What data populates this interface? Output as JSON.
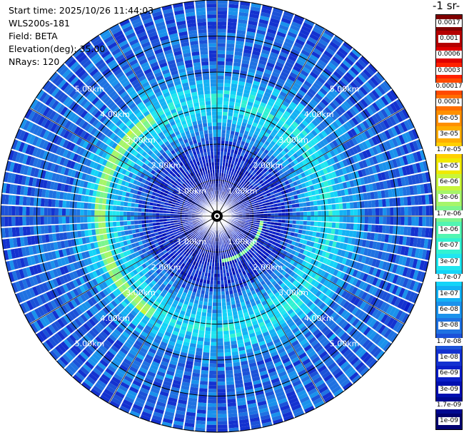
{
  "info": {
    "start_time": "Start time: 2025/10/26 11:44:03",
    "instrument": "WLS200s-181",
    "field": "Field: BETA",
    "elevation": "Elevation(deg): 35.00",
    "nrays": "NRays: 120"
  },
  "colorbar": {
    "title": "-1 sr-",
    "bands": [
      {
        "label": "0.0017",
        "color": "#7f0000"
      },
      {
        "label": "0.001",
        "color": "#b40000"
      },
      {
        "label": "0.0006",
        "color": "#e00000"
      },
      {
        "label": "0.0003",
        "color": "#ff2000"
      },
      {
        "label": "0.00017",
        "color": "#ff4a00"
      },
      {
        "label": "0.0001",
        "color": "#ff6e00"
      },
      {
        "label": "6e-05",
        "color": "#ff9000"
      },
      {
        "label": "3e-05",
        "color": "#ffae00"
      },
      {
        "label": "1.7e-05",
        "color": "#ffd000"
      },
      {
        "label": "1e-05",
        "color": "#f0ea00"
      },
      {
        "label": "6e-06",
        "color": "#c8f53a"
      },
      {
        "label": "3e-06",
        "color": "#a6f56a"
      },
      {
        "label": "1.7e-06",
        "color": "#7cf58e"
      },
      {
        "label": "1e-06",
        "color": "#52f5b2"
      },
      {
        "label": "6e-07",
        "color": "#32f2d2"
      },
      {
        "label": "3e-07",
        "color": "#20e6f0"
      },
      {
        "label": "1.7e-07",
        "color": "#14d4f8"
      },
      {
        "label": "1e-07",
        "color": "#14b2f4"
      },
      {
        "label": "6e-08",
        "color": "#1a92ec"
      },
      {
        "label": "3e-08",
        "color": "#1f72e2"
      },
      {
        "label": "1.7e-08",
        "color": "#1c52d8"
      },
      {
        "label": "1e-08",
        "color": "#1432d0"
      },
      {
        "label": "6e-09",
        "color": "#0a1ec8"
      },
      {
        "label": "3e-09",
        "color": "#0010b0"
      },
      {
        "label": "1.7e-09",
        "color": "#000890"
      },
      {
        "label": "1e-09",
        "color": "#000070"
      }
    ]
  },
  "chart_data": {
    "type": "heatmap",
    "projection": "polar-ppi",
    "field": "BETA",
    "elevation_deg": 35.0,
    "n_rays": 120,
    "range_rings_km": [
      1,
      2,
      3,
      4,
      5
    ],
    "range_ring_labels": [
      "1.00km",
      "2.00km",
      "3.00km",
      "4.00km",
      "5.00km"
    ],
    "max_range_km": 6.0,
    "radial_profile": [
      {
        "range_km": 0.0,
        "beta": 2e-09
      },
      {
        "range_km": 1.0,
        "beta": 4e-09
      },
      {
        "range_km": 1.9,
        "beta": 1e-08
      },
      {
        "range_km": 2.2,
        "beta": 3e-08
      },
      {
        "range_km": 2.8,
        "beta": 1.7e-07
      },
      {
        "range_km": 3.2,
        "beta": 3e-07
      },
      {
        "range_km": 3.6,
        "beta": 1e-07
      },
      {
        "range_km": 4.2,
        "beta": 3e-08
      },
      {
        "range_km": 6.0,
        "beta": 2e-08
      }
    ],
    "annotations": [
      {
        "feature": "enhanced ring",
        "range_km": 3.2,
        "beta": 3e-06,
        "sector": "west"
      },
      {
        "feature": "arc",
        "range_km": 1.2,
        "beta": 1.7e-06,
        "sector": "south-east"
      }
    ]
  }
}
